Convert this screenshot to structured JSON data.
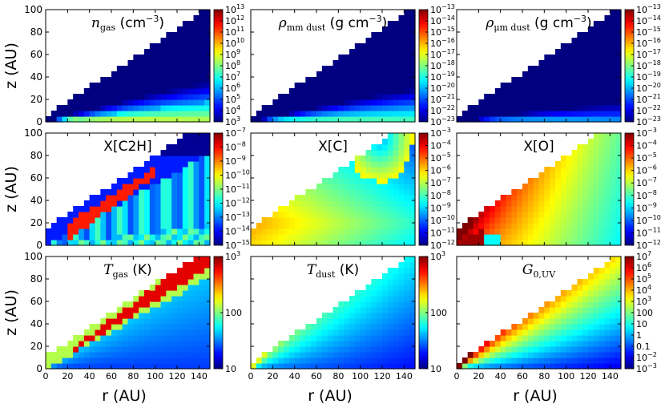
{
  "figure": {
    "ylabel": "z (AU)",
    "xlabel": "r (AU)"
  },
  "chart_data": [
    {
      "type": "heatmap",
      "id": "ngas",
      "title_math": "n",
      "title_sub": "gas",
      "title_unit": " (cm",
      "title_exp": "−3",
      "title_close": ")",
      "xlim": [
        0,
        150
      ],
      "ylim": [
        0,
        100
      ],
      "xticks": [
        0,
        20,
        40,
        60,
        80,
        100,
        120,
        140
      ],
      "yticks": [
        0,
        20,
        40,
        60,
        80,
        100
      ],
      "colormap": "jet",
      "colorbar": {
        "scale": "log",
        "ticks": [
          {
            "b": "10",
            "e": "13"
          },
          {
            "b": "10",
            "e": "12"
          },
          {
            "b": "10",
            "e": "11"
          },
          {
            "b": "10",
            "e": "10"
          },
          {
            "b": "10",
            "e": "9"
          },
          {
            "b": "10",
            "e": "8"
          },
          {
            "b": "10",
            "e": "7"
          },
          {
            "b": "10",
            "e": "6"
          },
          {
            "b": "10",
            "e": "5"
          },
          {
            "b": "10",
            "e": "4"
          },
          {
            "b": "10",
            "e": "3"
          }
        ]
      }
    },
    {
      "type": "heatmap",
      "id": "rho_mm",
      "title_math": "ρ",
      "title_sub": "mm dust",
      "title_unit": " (g cm",
      "title_exp": "−3",
      "title_close": ")",
      "xlim": [
        0,
        150
      ],
      "ylim": [
        0,
        100
      ],
      "xticks": [
        0,
        20,
        40,
        60,
        80,
        100,
        120,
        140
      ],
      "yticks": [
        0,
        20,
        40,
        60,
        80,
        100
      ],
      "colormap": "jet",
      "colorbar": {
        "scale": "log",
        "ticks": [
          {
            "b": "10",
            "e": "−13"
          },
          {
            "b": "10",
            "e": "−14"
          },
          {
            "b": "10",
            "e": "−15"
          },
          {
            "b": "10",
            "e": "−16"
          },
          {
            "b": "10",
            "e": "−17"
          },
          {
            "b": "10",
            "e": "−18"
          },
          {
            "b": "10",
            "e": "−19"
          },
          {
            "b": "10",
            "e": "−20"
          },
          {
            "b": "10",
            "e": "−21"
          },
          {
            "b": "10",
            "e": "−22"
          },
          {
            "b": "10",
            "e": "−23"
          }
        ]
      }
    },
    {
      "type": "heatmap",
      "id": "rho_um",
      "title_math": "ρ",
      "title_sub": "μm dust",
      "title_unit": " (g cm",
      "title_exp": "−3",
      "title_close": ")",
      "xlim": [
        0,
        150
      ],
      "ylim": [
        0,
        100
      ],
      "xticks": [
        0,
        20,
        40,
        60,
        80,
        100,
        120,
        140
      ],
      "yticks": [
        0,
        20,
        40,
        60,
        80,
        100
      ],
      "colormap": "jet",
      "colorbar": {
        "scale": "log",
        "ticks": [
          {
            "b": "10",
            "e": "−13"
          },
          {
            "b": "10",
            "e": "−14"
          },
          {
            "b": "10",
            "e": "−15"
          },
          {
            "b": "10",
            "e": "−16"
          },
          {
            "b": "10",
            "e": "−17"
          },
          {
            "b": "10",
            "e": "−18"
          },
          {
            "b": "10",
            "e": "−19"
          },
          {
            "b": "10",
            "e": "−20"
          },
          {
            "b": "10",
            "e": "−21"
          },
          {
            "b": "10",
            "e": "−22"
          },
          {
            "b": "10",
            "e": "−23"
          }
        ]
      }
    },
    {
      "type": "heatmap",
      "id": "xc2h",
      "title_math": "",
      "title_sub": "",
      "title_unit": "X[C2H]",
      "title_exp": "",
      "title_close": "",
      "xlim": [
        0,
        150
      ],
      "ylim": [
        0,
        100
      ],
      "xticks": [
        0,
        20,
        40,
        60,
        80,
        100,
        120,
        140
      ],
      "yticks": [
        0,
        20,
        40,
        60,
        80,
        100
      ],
      "colormap": "jet",
      "colorbar": {
        "scale": "log",
        "ticks": [
          {
            "b": "10",
            "e": "−7"
          },
          {
            "b": "10",
            "e": "−8"
          },
          {
            "b": "10",
            "e": "−9"
          },
          {
            "b": "10",
            "e": "−10"
          },
          {
            "b": "10",
            "e": "−11"
          },
          {
            "b": "10",
            "e": "−12"
          },
          {
            "b": "10",
            "e": "−13"
          },
          {
            "b": "10",
            "e": "−14"
          },
          {
            "b": "10",
            "e": "−15"
          }
        ]
      }
    },
    {
      "type": "heatmap",
      "id": "xc",
      "title_math": "",
      "title_sub": "",
      "title_unit": "X[C]",
      "title_exp": "",
      "title_close": "",
      "xlim": [
        0,
        150
      ],
      "ylim": [
        0,
        100
      ],
      "xticks": [
        0,
        20,
        40,
        60,
        80,
        100,
        120,
        140
      ],
      "yticks": [
        0,
        20,
        40,
        60,
        80,
        100
      ],
      "colormap": "jet",
      "colorbar": {
        "scale": "log",
        "ticks": [
          {
            "b": "10",
            "e": "−3"
          },
          {
            "b": "10",
            "e": "−4"
          },
          {
            "b": "10",
            "e": "−5"
          },
          {
            "b": "10",
            "e": "−6"
          },
          {
            "b": "10",
            "e": "−7"
          },
          {
            "b": "10",
            "e": "−8"
          },
          {
            "b": "10",
            "e": "−9"
          },
          {
            "b": "10",
            "e": "−10"
          },
          {
            "b": "10",
            "e": "−11"
          },
          {
            "b": "10",
            "e": "−12"
          }
        ]
      }
    },
    {
      "type": "heatmap",
      "id": "xo",
      "title_math": "",
      "title_sub": "",
      "title_unit": "X[O]",
      "title_exp": "",
      "title_close": "",
      "xlim": [
        0,
        150
      ],
      "ylim": [
        0,
        100
      ],
      "xticks": [
        0,
        20,
        40,
        60,
        80,
        100,
        120,
        140
      ],
      "yticks": [
        0,
        20,
        40,
        60,
        80,
        100
      ],
      "colormap": "jet",
      "colorbar": {
        "scale": "log",
        "ticks": [
          {
            "b": "10",
            "e": "−3"
          },
          {
            "b": "10",
            "e": "−4"
          },
          {
            "b": "10",
            "e": "−5"
          },
          {
            "b": "10",
            "e": "−6"
          },
          {
            "b": "10",
            "e": "−7"
          },
          {
            "b": "10",
            "e": "−8"
          },
          {
            "b": "10",
            "e": "−9"
          },
          {
            "b": "10",
            "e": "−10"
          },
          {
            "b": "10",
            "e": "−11"
          },
          {
            "b": "10",
            "e": "−12"
          }
        ]
      }
    },
    {
      "type": "heatmap",
      "id": "tgas",
      "title_math": "T",
      "title_sub": "gas",
      "title_unit": " (K)",
      "title_exp": "",
      "title_close": "",
      "xlim": [
        0,
        150
      ],
      "ylim": [
        0,
        100
      ],
      "xticks": [
        0,
        20,
        40,
        60,
        80,
        100,
        120,
        140
      ],
      "yticks": [
        0,
        20,
        40,
        60,
        80,
        100
      ],
      "colormap": "jet",
      "colorbar": {
        "scale": "log",
        "range": [
          10,
          1000
        ],
        "ticks": [
          {
            "v": 1000,
            "b": "10",
            "e": "3"
          },
          {
            "v": 100,
            "b": "100",
            "e": ""
          },
          {
            "v": 10,
            "b": "10",
            "e": ""
          }
        ]
      }
    },
    {
      "type": "heatmap",
      "id": "tdust",
      "title_math": "T",
      "title_sub": "dust",
      "title_unit": " (K)",
      "title_exp": "",
      "title_close": "",
      "xlim": [
        0,
        150
      ],
      "ylim": [
        0,
        100
      ],
      "xticks": [
        0,
        20,
        40,
        60,
        80,
        100,
        120,
        140
      ],
      "yticks": [
        0,
        20,
        40,
        60,
        80,
        100
      ],
      "colormap": "jet",
      "colorbar": {
        "scale": "log",
        "range": [
          10,
          1000
        ],
        "ticks": [
          {
            "v": 1000,
            "b": "10",
            "e": "3"
          },
          {
            "v": 100,
            "b": "100",
            "e": ""
          },
          {
            "v": 10,
            "b": "10",
            "e": ""
          }
        ]
      }
    },
    {
      "type": "heatmap",
      "id": "g0uv",
      "title_math": "G",
      "title_sub": "0,UV",
      "title_unit": "",
      "title_exp": "",
      "title_close": "",
      "xlim": [
        0,
        150
      ],
      "ylim": [
        0,
        100
      ],
      "xticks": [
        0,
        20,
        40,
        60,
        80,
        100,
        120,
        140
      ],
      "yticks": [
        0,
        20,
        40,
        60,
        80,
        100
      ],
      "colormap": "jet",
      "colorbar": {
        "scale": "log",
        "ticks": [
          {
            "b": "10",
            "e": "7"
          },
          {
            "b": "10",
            "e": "6"
          },
          {
            "b": "10",
            "e": "5"
          },
          {
            "b": "10",
            "e": "4"
          },
          {
            "b": "10",
            "e": "3"
          },
          {
            "b": "100",
            "e": ""
          },
          {
            "b": "10",
            "e": ""
          },
          {
            "b": "1",
            "e": ""
          },
          {
            "b": "0.1",
            "e": ""
          },
          {
            "b": "10",
            "e": "−2"
          },
          {
            "b": "10",
            "e": "−3"
          }
        ]
      }
    }
  ]
}
